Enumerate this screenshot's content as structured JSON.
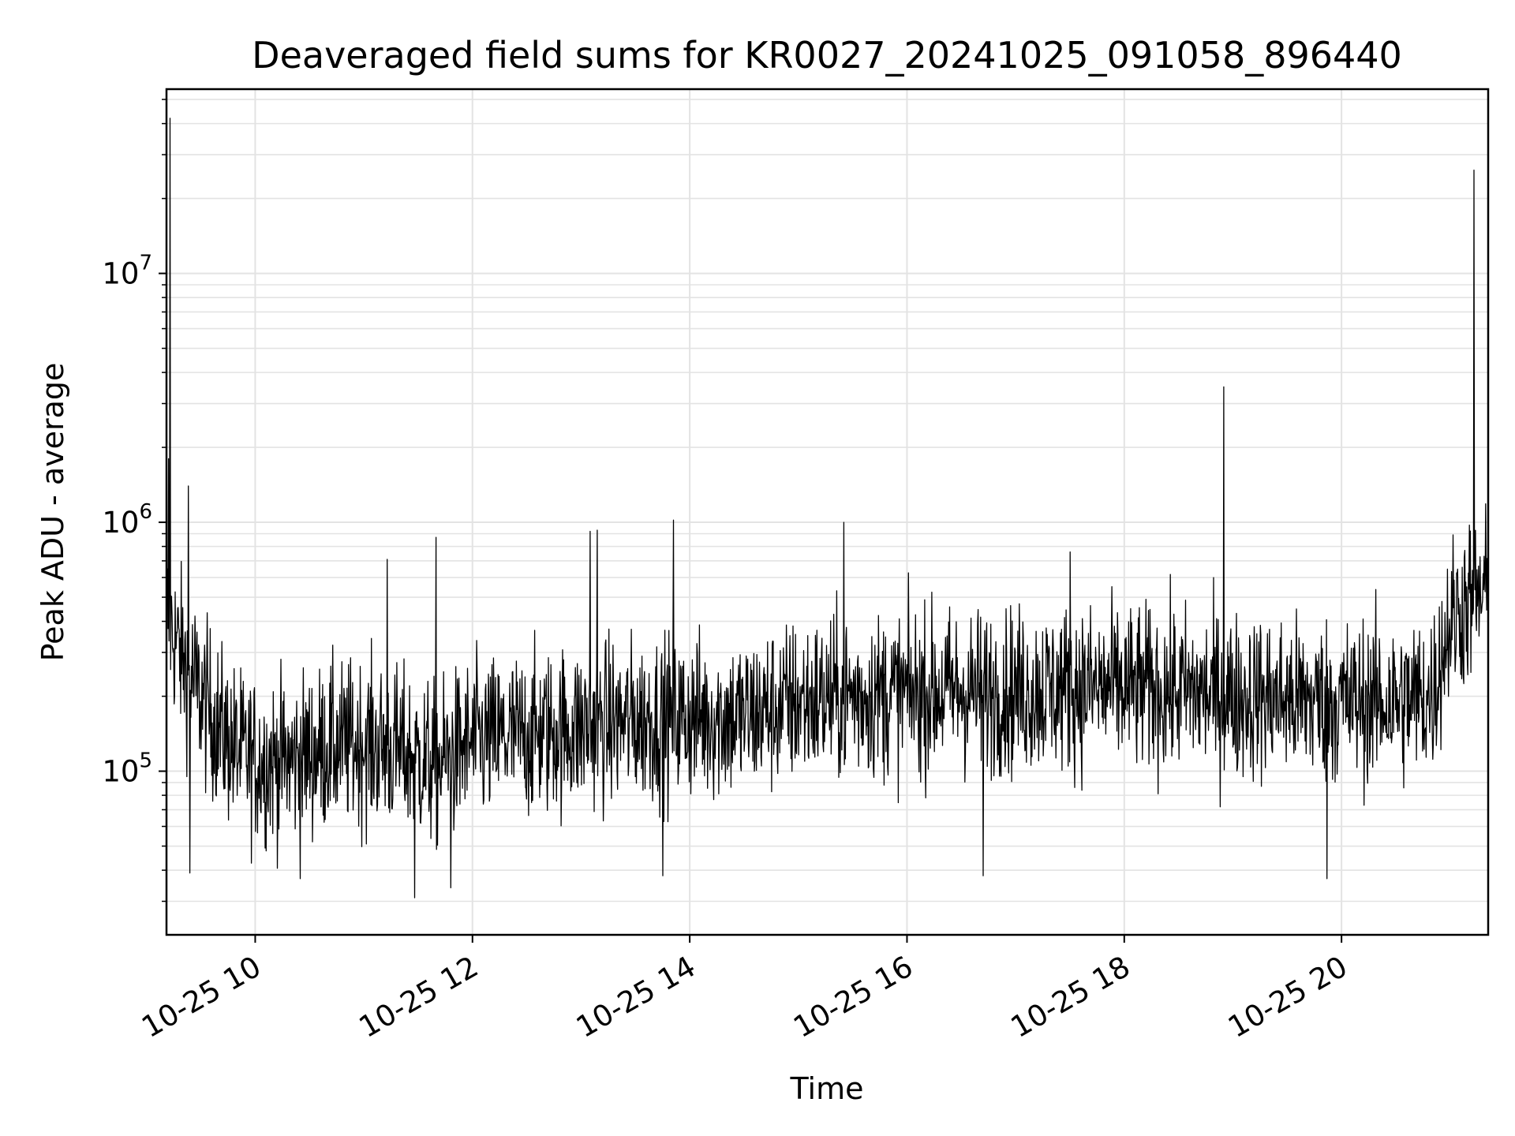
{
  "chart_data": {
    "type": "line",
    "title": "Deaveraged field sums for KR0027_20241025_091058_896440",
    "xlabel": "Time",
    "ylabel": "Peak ADU - average",
    "x_range": [
      "10-25 09:11",
      "10-25 21:21"
    ],
    "ylim": [
      22000,
      55000000
    ],
    "yscale": "log",
    "grid": true,
    "x_ticks": [
      "10-25 10",
      "10-25 12",
      "10-25 14",
      "10-25 16",
      "10-25 18",
      "10-25 20"
    ],
    "y_ticks": [
      {
        "base": "10",
        "exp": "5",
        "value": 100000
      },
      {
        "base": "10",
        "exp": "6",
        "value": 1000000
      },
      {
        "base": "10",
        "exp": "7",
        "value": 10000000
      }
    ],
    "series": [
      {
        "color": "#000000",
        "x": [
          "10-25 09:11",
          "10-25 09:15",
          "10-25 09:20",
          "10-25 09:30",
          "10-25 09:40",
          "10-25 09:50",
          "10-25 10:00",
          "10-25 10:20",
          "10-25 10:40",
          "10-25 11:00",
          "10-25 11:20",
          "10-25 11:40",
          "10-25 12:00",
          "10-25 12:30",
          "10-25 13:00",
          "10-25 13:30",
          "10-25 14:00",
          "10-25 14:30",
          "10-25 15:00",
          "10-25 15:30",
          "10-25 16:00",
          "10-25 16:30",
          "10-25 17:00",
          "10-25 17:30",
          "10-25 18:00",
          "10-25 18:30",
          "10-25 19:00",
          "10-25 19:30",
          "10-25 20:00",
          "10-25 20:30",
          "10-25 20:50",
          "10-25 21:00",
          "10-25 21:10",
          "10-25 21:21"
        ],
        "baseline": [
          450000,
          350000,
          280000,
          200000,
          150000,
          120000,
          110000,
          110000,
          125000,
          130000,
          120000,
          105000,
          130000,
          140000,
          150000,
          160000,
          165000,
          165000,
          190000,
          200000,
          205000,
          210000,
          210000,
          215000,
          215000,
          210000,
          200000,
          195000,
          190000,
          190000,
          200000,
          400000,
          480000,
          520000
        ],
        "spikes": [
          {
            "x": "10-25 09:13",
            "y": 42000000
          },
          {
            "x": "10-25 09:12",
            "y": 1800000
          },
          {
            "x": "10-25 09:23",
            "y": 1400000
          },
          {
            "x": "10-25 11:13",
            "y": 710000
          },
          {
            "x": "10-25 11:40",
            "y": 870000
          },
          {
            "x": "10-25 13:05",
            "y": 920000
          },
          {
            "x": "10-25 13:09",
            "y": 930000
          },
          {
            "x": "10-25 13:51",
            "y": 1020000
          },
          {
            "x": "10-25 15:25",
            "y": 1000000
          },
          {
            "x": "10-25 17:30",
            "y": 760000
          },
          {
            "x": "10-25 18:55",
            "y": 3500000
          },
          {
            "x": "10-25 21:13",
            "y": 26000000
          }
        ],
        "dips": [
          {
            "x": "10-25 11:28",
            "y": 31000
          },
          {
            "x": "10-25 11:48",
            "y": 34000
          },
          {
            "x": "10-25 10:25",
            "y": 37000
          },
          {
            "x": "10-25 19:52",
            "y": 37000
          },
          {
            "x": "10-25 09:24",
            "y": 39000
          },
          {
            "x": "10-25 13:45",
            "y": 38000
          },
          {
            "x": "10-25 16:42",
            "y": 38000
          }
        ],
        "noise_decades": 0.3
      }
    ]
  }
}
